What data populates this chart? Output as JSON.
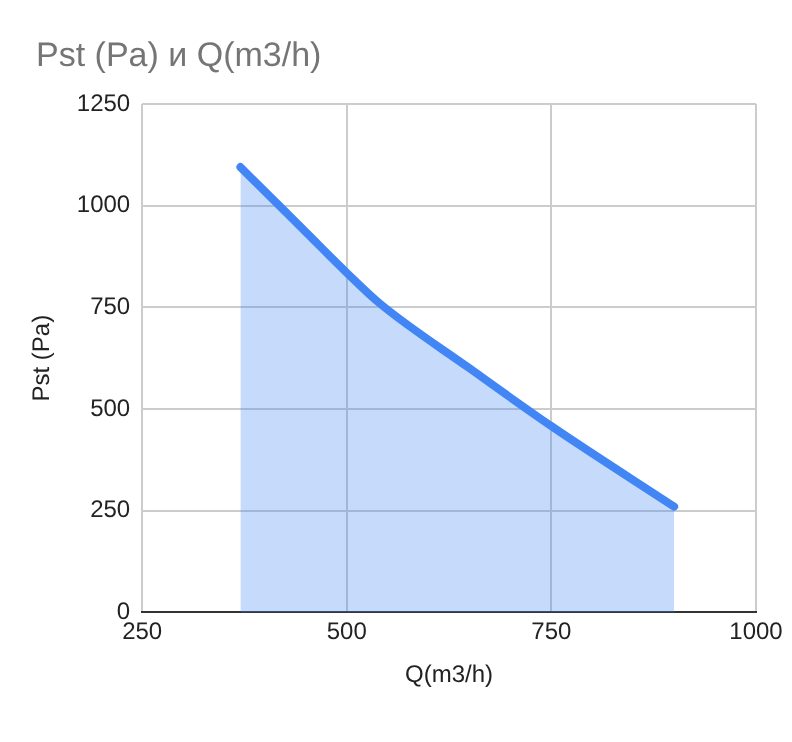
{
  "chart_data": {
    "type": "area",
    "title": "Pst (Pa) и Q(m3/h)",
    "xlabel": "Q(m3/h)",
    "ylabel": "Pst (Pa)",
    "x": [
      370,
      450,
      500,
      540,
      650,
      750,
      900
    ],
    "series": [
      {
        "color": "#4285f4",
        "values": [
          1095,
          935,
          835,
          760,
          600,
          458,
          260
        ]
      }
    ],
    "xlim": [
      250,
      1000
    ],
    "xticks": [
      250,
      500,
      750,
      1000
    ],
    "ylim": [
      0,
      1250
    ],
    "yticks": [
      0,
      250,
      500,
      750,
      1000,
      1250
    ],
    "grid": true,
    "legend": false
  }
}
